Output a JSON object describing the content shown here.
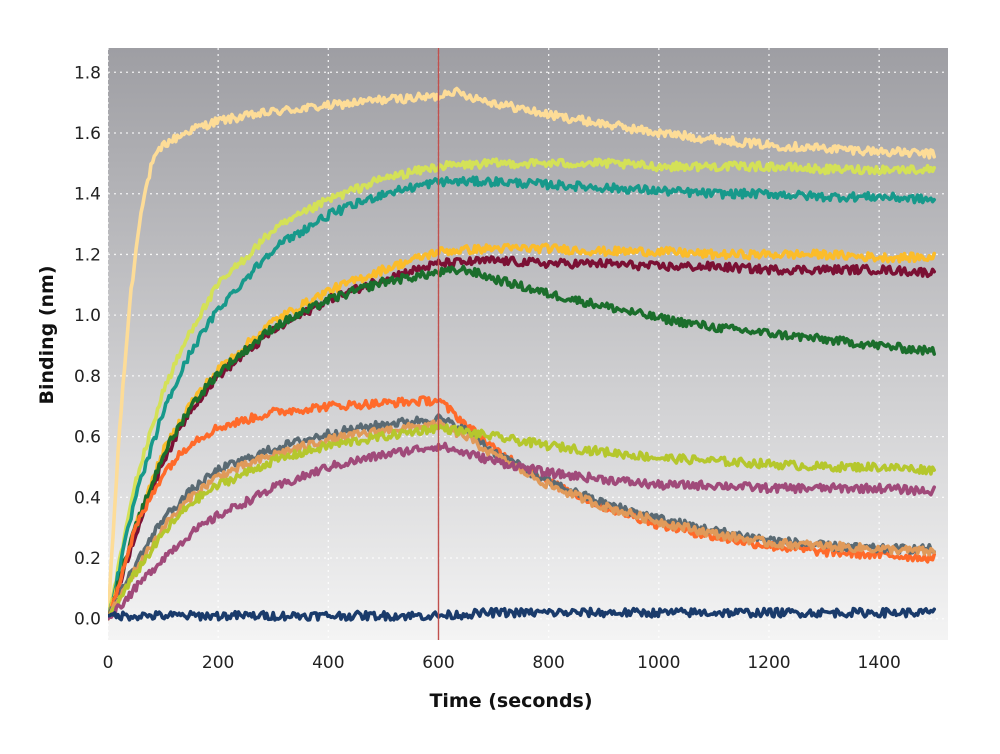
{
  "chart_data": {
    "type": "line",
    "xlabel": "Time (seconds)",
    "ylabel": "Binding (nm)",
    "xlim": [
      0,
      1525
    ],
    "ylim": [
      -0.07,
      1.88
    ],
    "x_ticks": [
      0,
      200,
      400,
      600,
      800,
      1000,
      1200,
      1400
    ],
    "y_ticks": [
      0.0,
      0.2,
      0.4,
      0.6,
      0.8,
      1.0,
      1.2,
      1.4,
      1.6,
      1.8
    ],
    "y_tick_labels": [
      "0.0",
      "0.2",
      "0.4",
      "0.6",
      "0.8",
      "1.0",
      "1.2",
      "1.4",
      "1.6",
      "1.8"
    ],
    "x_tick_labels": [
      "0",
      "200",
      "400",
      "600",
      "800",
      "1000",
      "1200",
      "1400"
    ],
    "grid": true,
    "vertical_marker_x": 600,
    "colors": {
      "background_top": "#9e9ea3",
      "background_bottom": "#f4f4f4",
      "marker": "#c0504d"
    },
    "series": [
      {
        "color": "#fddc97",
        "x": [
          0,
          20,
          40,
          60,
          80,
          100,
          150,
          200,
          300,
          400,
          500,
          600,
          620,
          700,
          800,
          900,
          1000,
          1100,
          1200,
          1300,
          1400,
          1500
        ],
        "values": [
          0.0,
          0.6,
          1.05,
          1.35,
          1.5,
          1.56,
          1.61,
          1.64,
          1.67,
          1.69,
          1.71,
          1.72,
          1.74,
          1.7,
          1.66,
          1.63,
          1.6,
          1.58,
          1.56,
          1.55,
          1.54,
          1.53
        ]
      },
      {
        "color": "#d4e157",
        "x": [
          0,
          50,
          100,
          150,
          200,
          300,
          400,
          500,
          600,
          700,
          800,
          900,
          1000,
          1100,
          1200,
          1300,
          1400,
          1500
        ],
        "values": [
          0.0,
          0.45,
          0.75,
          0.95,
          1.1,
          1.28,
          1.38,
          1.45,
          1.49,
          1.5,
          1.5,
          1.5,
          1.49,
          1.49,
          1.49,
          1.48,
          1.48,
          1.48
        ]
      },
      {
        "color": "#17998b",
        "x": [
          0,
          50,
          100,
          150,
          200,
          300,
          400,
          500,
          600,
          700,
          800,
          900,
          1000,
          1100,
          1200,
          1300,
          1400,
          1500
        ],
        "values": [
          0.0,
          0.4,
          0.68,
          0.88,
          1.02,
          1.22,
          1.33,
          1.4,
          1.44,
          1.44,
          1.43,
          1.42,
          1.41,
          1.4,
          1.4,
          1.39,
          1.39,
          1.38
        ]
      },
      {
        "color": "#fbbc2a",
        "x": [
          0,
          50,
          100,
          150,
          200,
          300,
          400,
          500,
          600,
          700,
          800,
          900,
          1000,
          1100,
          1200,
          1300,
          1400,
          1500
        ],
        "values": [
          0.0,
          0.3,
          0.55,
          0.71,
          0.82,
          0.98,
          1.08,
          1.15,
          1.21,
          1.22,
          1.22,
          1.21,
          1.21,
          1.2,
          1.2,
          1.2,
          1.19,
          1.19
        ]
      },
      {
        "color": "#7b1034",
        "x": [
          0,
          50,
          100,
          150,
          200,
          300,
          400,
          500,
          600,
          700,
          800,
          900,
          1000,
          1100,
          1200,
          1300,
          1400,
          1500
        ],
        "values": [
          0.0,
          0.28,
          0.52,
          0.69,
          0.8,
          0.95,
          1.05,
          1.12,
          1.17,
          1.18,
          1.17,
          1.17,
          1.16,
          1.16,
          1.15,
          1.15,
          1.15,
          1.14
        ]
      },
      {
        "color": "#1b6e2c",
        "x": [
          0,
          50,
          100,
          150,
          200,
          300,
          400,
          500,
          600,
          650,
          700,
          800,
          900,
          1000,
          1100,
          1200,
          1300,
          1400,
          1500
        ],
        "values": [
          0.0,
          0.3,
          0.54,
          0.7,
          0.81,
          0.96,
          1.05,
          1.11,
          1.14,
          1.15,
          1.12,
          1.07,
          1.03,
          0.99,
          0.96,
          0.94,
          0.92,
          0.9,
          0.88
        ]
      },
      {
        "color": "#ff6a2a",
        "x": [
          0,
          50,
          100,
          150,
          200,
          300,
          400,
          500,
          600,
          650,
          700,
          800,
          900,
          1000,
          1100,
          1200,
          1300,
          1400,
          1500
        ],
        "values": [
          0.0,
          0.3,
          0.48,
          0.58,
          0.63,
          0.68,
          0.7,
          0.71,
          0.72,
          0.64,
          0.56,
          0.45,
          0.37,
          0.31,
          0.27,
          0.24,
          0.22,
          0.21,
          0.2
        ]
      },
      {
        "color": "#5a6a73",
        "x": [
          0,
          50,
          100,
          150,
          200,
          300,
          400,
          500,
          600,
          650,
          700,
          800,
          900,
          1000,
          1100,
          1200,
          1300,
          1400,
          1500
        ],
        "values": [
          0.0,
          0.18,
          0.33,
          0.42,
          0.49,
          0.56,
          0.61,
          0.64,
          0.66,
          0.62,
          0.55,
          0.45,
          0.38,
          0.33,
          0.29,
          0.26,
          0.24,
          0.23,
          0.23
        ]
      },
      {
        "color": "#e09a5a",
        "x": [
          0,
          50,
          100,
          150,
          200,
          300,
          400,
          500,
          600,
          650,
          700,
          800,
          900,
          1000,
          1100,
          1200,
          1300,
          1400,
          1500
        ],
        "values": [
          0.0,
          0.16,
          0.3,
          0.4,
          0.47,
          0.54,
          0.59,
          0.62,
          0.64,
          0.6,
          0.54,
          0.44,
          0.37,
          0.32,
          0.28,
          0.25,
          0.24,
          0.23,
          0.22
        ]
      },
      {
        "color": "#b5c72d",
        "x": [
          0,
          50,
          100,
          150,
          200,
          300,
          400,
          500,
          600,
          700,
          800,
          900,
          1000,
          1100,
          1200,
          1300,
          1400,
          1500
        ],
        "values": [
          0.0,
          0.15,
          0.28,
          0.38,
          0.44,
          0.52,
          0.57,
          0.6,
          0.63,
          0.6,
          0.57,
          0.55,
          0.53,
          0.52,
          0.51,
          0.5,
          0.5,
          0.49
        ]
      },
      {
        "color": "#a04a7a",
        "x": [
          0,
          50,
          100,
          150,
          200,
          300,
          400,
          500,
          600,
          700,
          800,
          900,
          1000,
          1100,
          1200,
          1300,
          1400,
          1500
        ],
        "values": [
          0.0,
          0.1,
          0.2,
          0.28,
          0.34,
          0.43,
          0.5,
          0.54,
          0.57,
          0.52,
          0.48,
          0.46,
          0.44,
          0.44,
          0.43,
          0.43,
          0.43,
          0.42
        ]
      },
      {
        "color": "#1a3b6b",
        "x": [
          0,
          100,
          200,
          300,
          400,
          500,
          600,
          700,
          800,
          900,
          1000,
          1100,
          1200,
          1300,
          1400,
          1500
        ],
        "values": [
          0.01,
          0.01,
          0.01,
          0.01,
          0.01,
          0.01,
          0.01,
          0.02,
          0.02,
          0.02,
          0.02,
          0.02,
          0.02,
          0.02,
          0.02,
          0.02
        ]
      }
    ]
  }
}
